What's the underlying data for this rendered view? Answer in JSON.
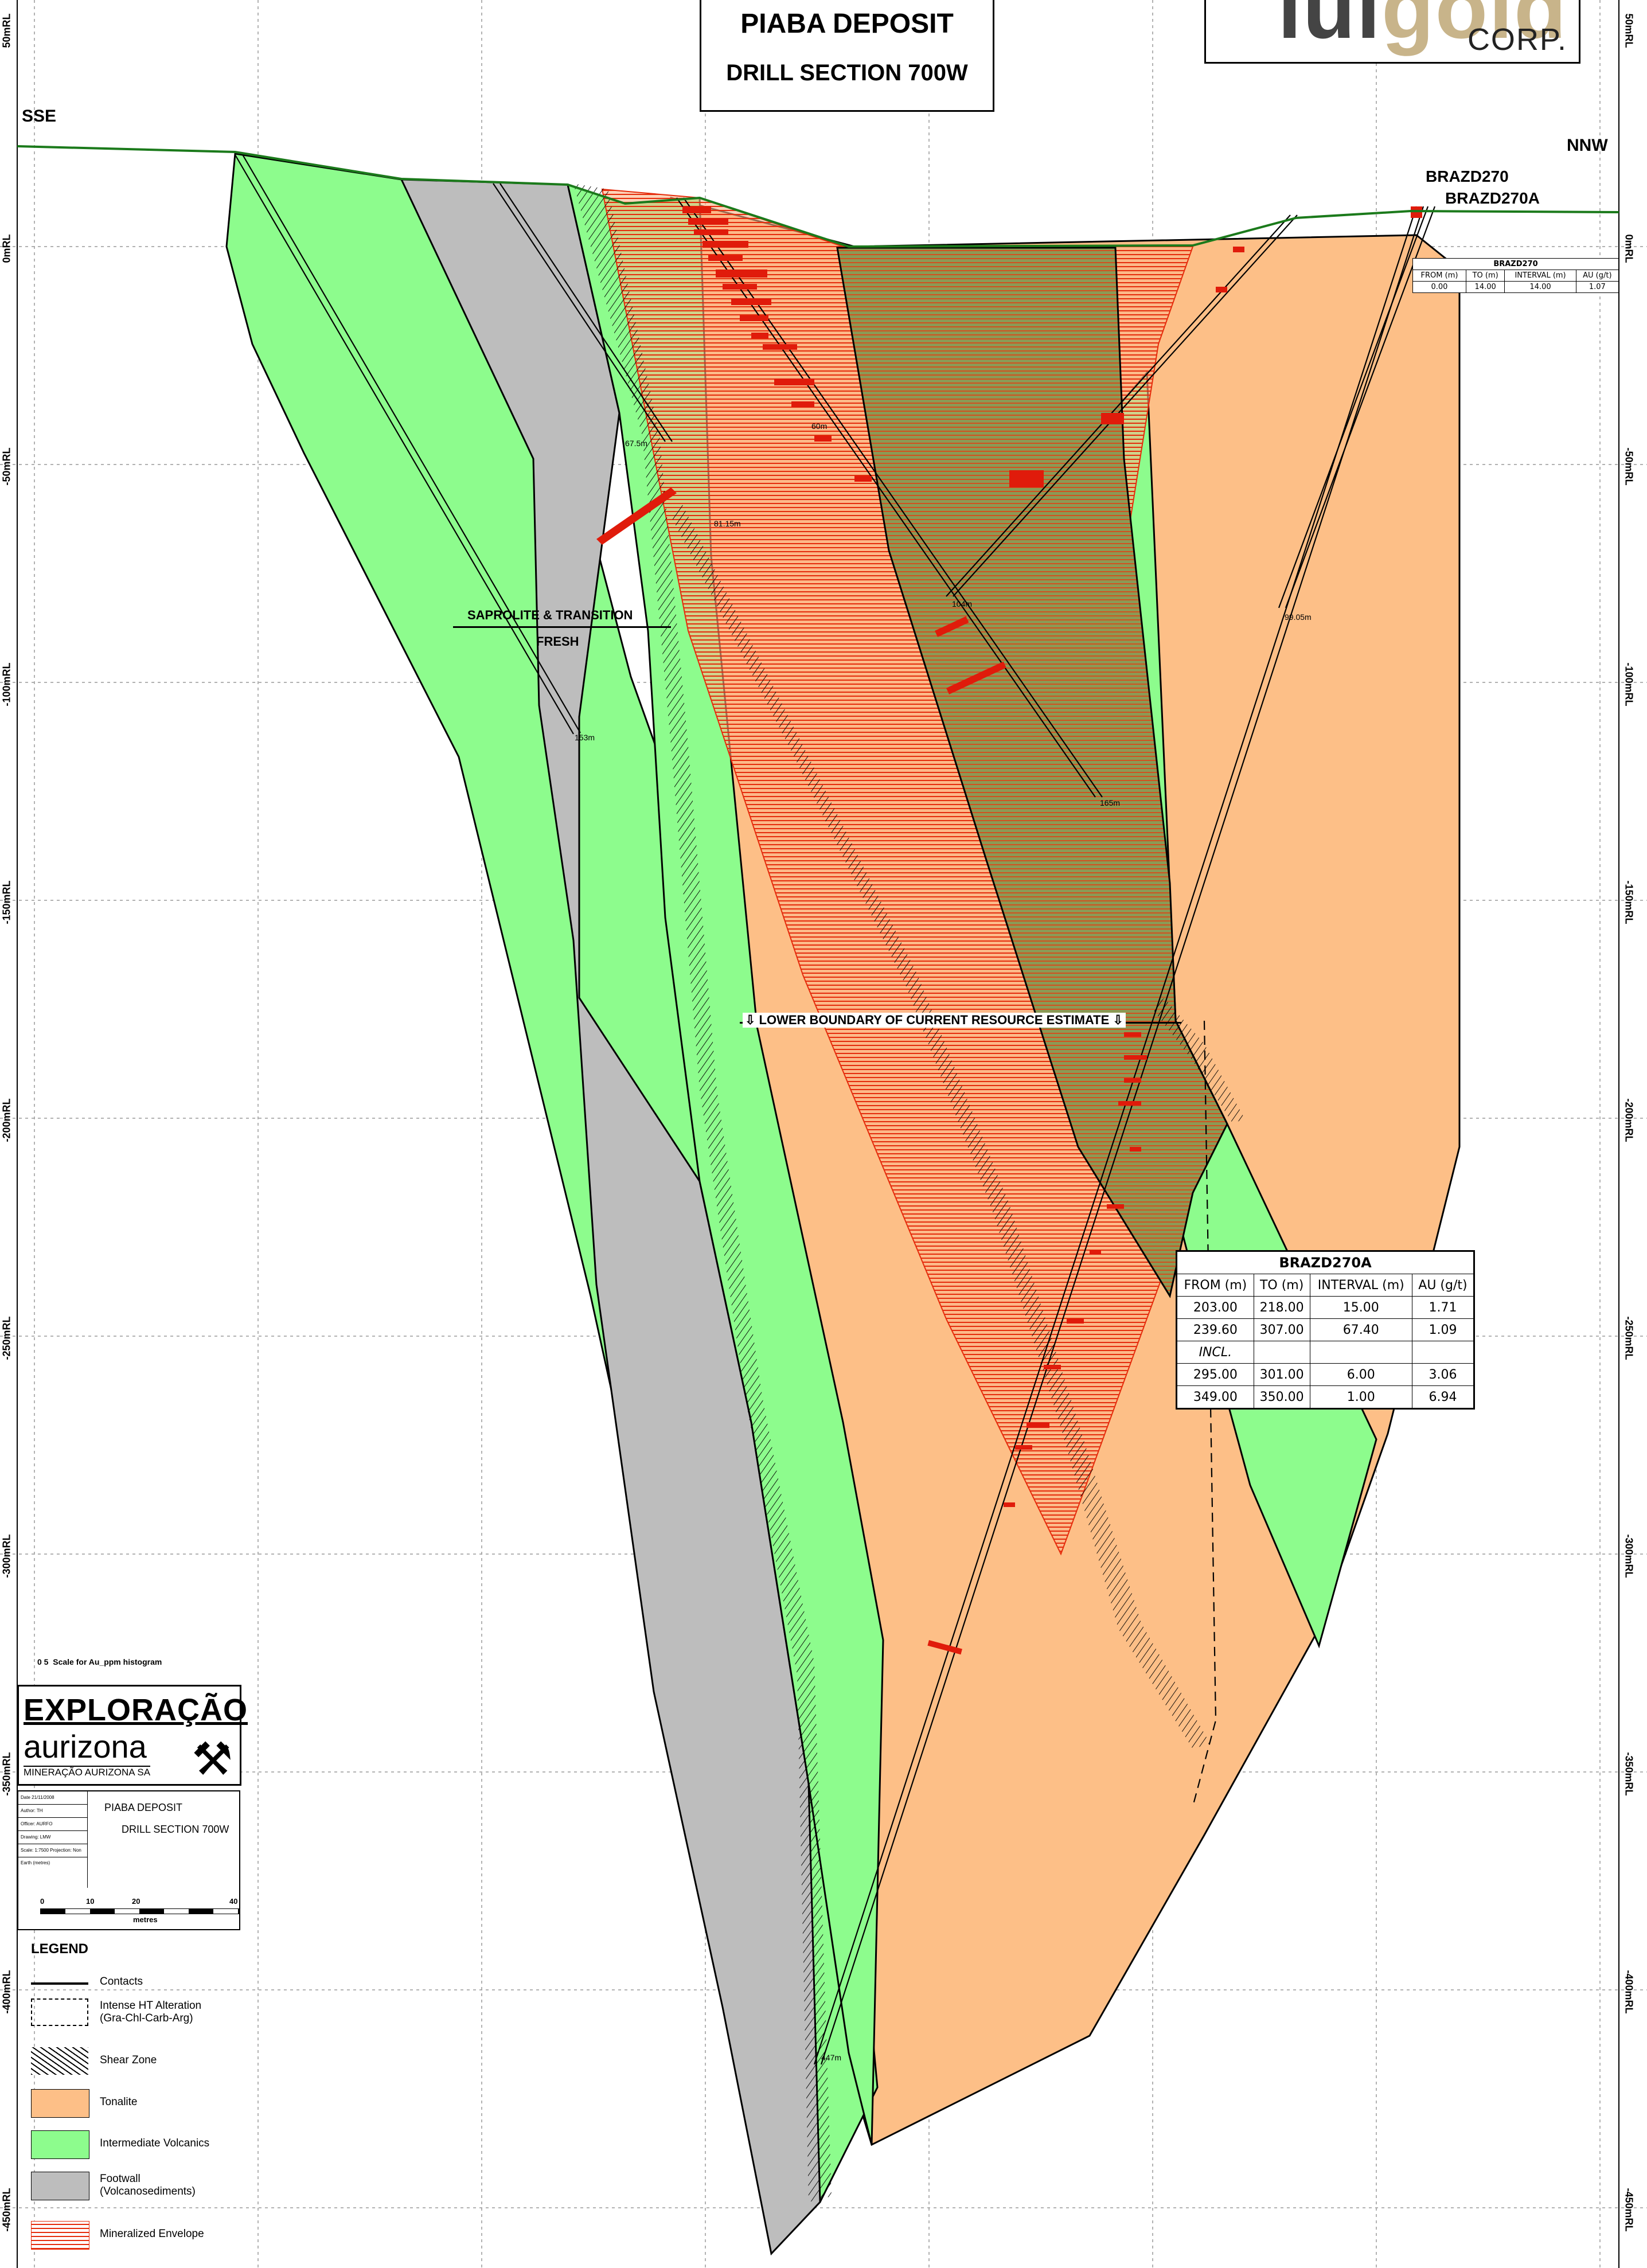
{
  "header": {
    "title": "PIABA DEPOSIT",
    "subtitle": "DRILL SECTION 700W"
  },
  "logo": {
    "brand_part1": "lui",
    "brand_part2": "gold",
    "corp": "CORP."
  },
  "rl_labels_left": [
    "50mRL",
    "0mRL",
    "-50mRL",
    "-100mRL",
    "-150mRL",
    "-200mRL",
    "-250mRL",
    "-300mRL",
    "-350mRL",
    "-400mRL",
    "-450mRL"
  ],
  "rl_labels_right": [
    "50mRL",
    "0mRL",
    "-50mRL",
    "-100mRL",
    "-150mRL",
    "-200mRL",
    "-250mRL",
    "-300mRL",
    "-350mRL",
    "-400mRL",
    "-450mRL"
  ],
  "directions": {
    "left": "SSE",
    "right": "NNW"
  },
  "drillholes": {
    "hole1": "BRAZD270",
    "hole2": "BRAZD270A"
  },
  "annotations": {
    "saprolite": "SAPROLITE & TRANSITION",
    "fresh": "FRESH",
    "resource_boundary": "LOWER BOUNDARY OF CURRENT RESOURCE ESTIMATE",
    "depths": [
      "67.5m",
      "81.15m",
      "60m",
      "104m",
      "153m",
      "165m",
      "99.05m",
      "447m"
    ]
  },
  "small_table": {
    "title": "BRAZD270",
    "headers": [
      "FROM (m)",
      "TO (m)",
      "INTERVAL (m)",
      "AU (g/t)"
    ],
    "rows": [
      [
        "0.00",
        "14.00",
        "14.00",
        "1.07"
      ]
    ]
  },
  "big_table": {
    "title": "BRAZD270A",
    "headers": [
      "FROM (m)",
      "TO (m)",
      "INTERVAL (m)",
      "AU (g/t)"
    ],
    "rows": [
      [
        "203.00",
        "218.00",
        "15.00",
        "1.71"
      ],
      [
        "239.60",
        "307.00",
        "67.40",
        "1.09"
      ],
      [
        "INCL.",
        "",
        "",
        ""
      ],
      [
        "295.00",
        "301.00",
        "6.00",
        "3.06"
      ],
      [
        "349.00",
        "350.00",
        "1.00",
        "6.94"
      ]
    ]
  },
  "histogram_scale": {
    "ticks": "0 5",
    "label": "Scale for Au_ppm histogram"
  },
  "company": {
    "name1": "EXPLORAÇÃO",
    "name2": "aurizona",
    "name3": "MINERAÇÃO AURIZONA SA"
  },
  "info_box": {
    "line1": "PIABA DEPOSIT",
    "line2": "DRILL SECTION 700W",
    "meta": [
      "Date 21/11/2008",
      "Author: TH",
      "Officer: AURFO",
      "Drawing: LMW",
      "Scale: 1:7500 Projection: Non Earth (metres)"
    ]
  },
  "scale_bar": {
    "ticks": [
      "0",
      "10",
      "20",
      "40"
    ],
    "unit": "metres"
  },
  "legend": {
    "title": "LEGEND",
    "items": [
      {
        "label": "Contacts"
      },
      {
        "label": "Intense HT Alteration\n(Gra-Chl-Carb-Arg)"
      },
      {
        "label": "Shear Zone"
      },
      {
        "label": "Tonalite"
      },
      {
        "label": "Intermediate Volcanics"
      },
      {
        "label": "Footwall\n(Volcanosediments)"
      },
      {
        "label": "Mineralized Envelope"
      }
    ]
  },
  "colors": {
    "tonalite": "#fdbf87",
    "volcanics": "#8dfc8d",
    "footwall": "#bdbdbd",
    "envelope": "#e52c0c",
    "topography": "#1b7a1b"
  }
}
